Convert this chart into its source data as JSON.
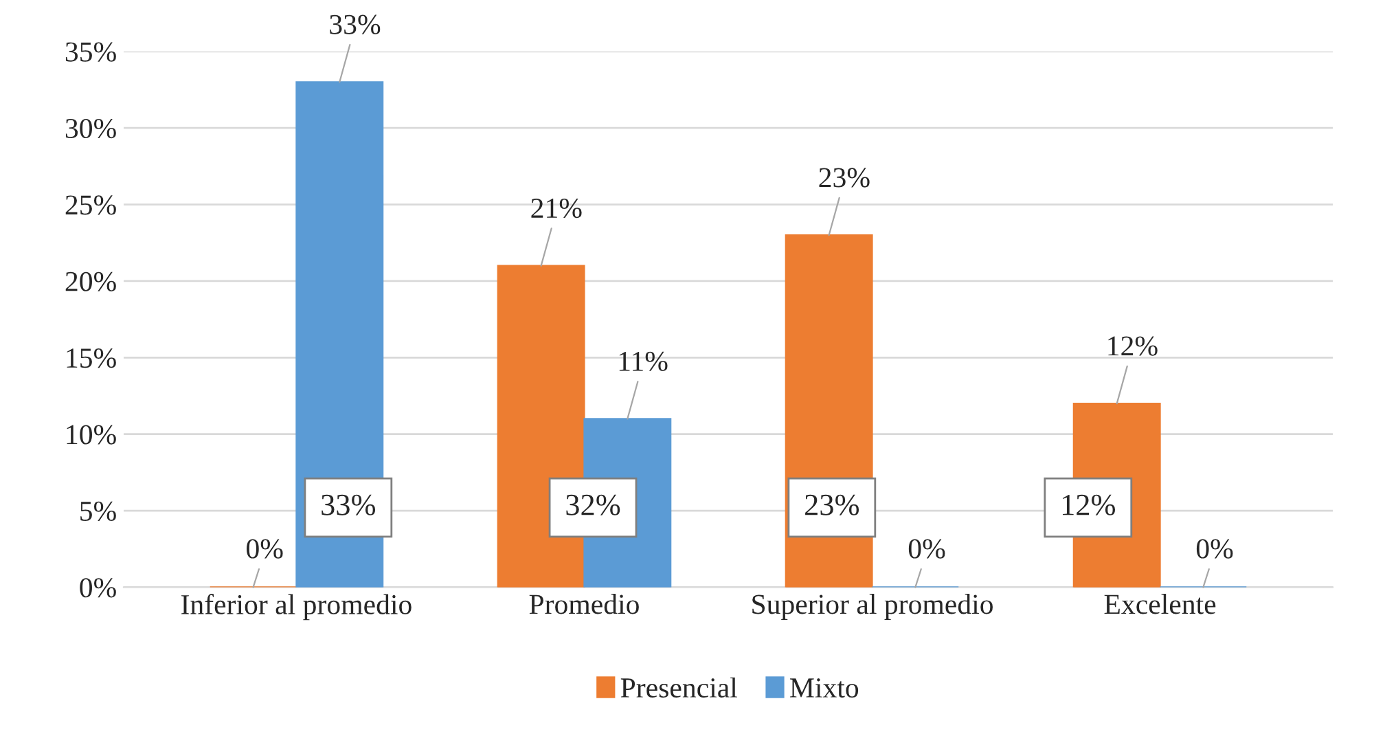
{
  "chart_data": {
    "type": "bar",
    "categories": [
      "Inferior al promedio",
      "Promedio",
      "Superior al promedio",
      "Excelente"
    ],
    "series": [
      {
        "name": "Presencial",
        "color": "#ed7d31",
        "values": [
          0,
          21,
          23,
          12
        ],
        "value_labels": [
          "0%",
          "21%",
          "23%",
          "12%"
        ]
      },
      {
        "name": "Mixto",
        "color": "#5b9bd5",
        "values": [
          33,
          11,
          0,
          0
        ],
        "value_labels": [
          "33%",
          "11%",
          "0%",
          "0%"
        ]
      }
    ],
    "ylim": [
      0,
      35
    ],
    "yticks": [
      {
        "value": 0,
        "label": "0%"
      },
      {
        "value": 5,
        "label": "5%"
      },
      {
        "value": 10,
        "label": "10%"
      },
      {
        "value": 15,
        "label": "15%"
      },
      {
        "value": 20,
        "label": "20%"
      },
      {
        "value": 25,
        "label": "25%"
      },
      {
        "value": 30,
        "label": "30%"
      },
      {
        "value": 35,
        "label": "35%"
      }
    ],
    "annotations": [
      "33%",
      "32%",
      "23%",
      "12%"
    ],
    "grid": "y",
    "legend": "bottom"
  }
}
